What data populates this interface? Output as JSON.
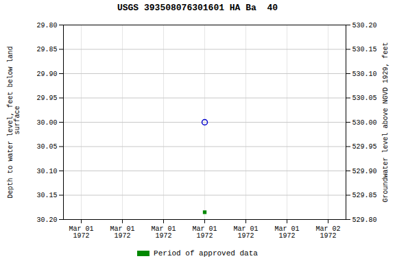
{
  "chart_data": {
    "type": "scatter",
    "title": "USGS 393508076301601 HA Ba  40",
    "ylabel": "Depth to water level, feet below land\n surface",
    "y2label": "Groundwater level above NGVD 1929, feet",
    "categories": [
      "Mar 01\n1972",
      "Mar 01\n1972",
      "Mar 01\n1972",
      "Mar 01\n1972",
      "Mar 01\n1972",
      "Mar 01\n1972",
      "Mar 02\n1972"
    ],
    "series": [
      {
        "color": "#0000cc",
        "marker": "circle",
        "values": [
          null,
          null,
          null,
          30.0,
          null,
          null,
          null
        ]
      },
      {
        "name": "Period of approved data",
        "color": "#008800",
        "marker": "square",
        "values": [
          null,
          null,
          null,
          30.185,
          null,
          null,
          null
        ]
      }
    ],
    "ylim": [
      30.2,
      29.8
    ],
    "yticks": [
      {
        "value": 29.8,
        "label": "29.80"
      },
      29.85,
      {
        "value": 29.9,
        "label": "29.90"
      },
      29.95,
      {
        "value": 30.0,
        "label": "30.00"
      },
      30.05,
      {
        "value": 30.1,
        "label": "30.10"
      },
      30.15,
      {
        "value": 30.2,
        "label": "30.20"
      }
    ],
    "y2lim": [
      529.8,
      530.2
    ],
    "y2ticks": [
      {
        "value": 530.2,
        "label": "530.20"
      },
      530.15,
      {
        "value": 530.1,
        "label": "530.10"
      },
      530.05,
      {
        "value": 530.0,
        "label": "530.00"
      },
      529.95,
      {
        "value": 529.9,
        "label": "529.90"
      },
      529.85,
      {
        "value": 529.8,
        "label": "529.80"
      }
    ],
    "grid": true,
    "legend": "bottom"
  }
}
